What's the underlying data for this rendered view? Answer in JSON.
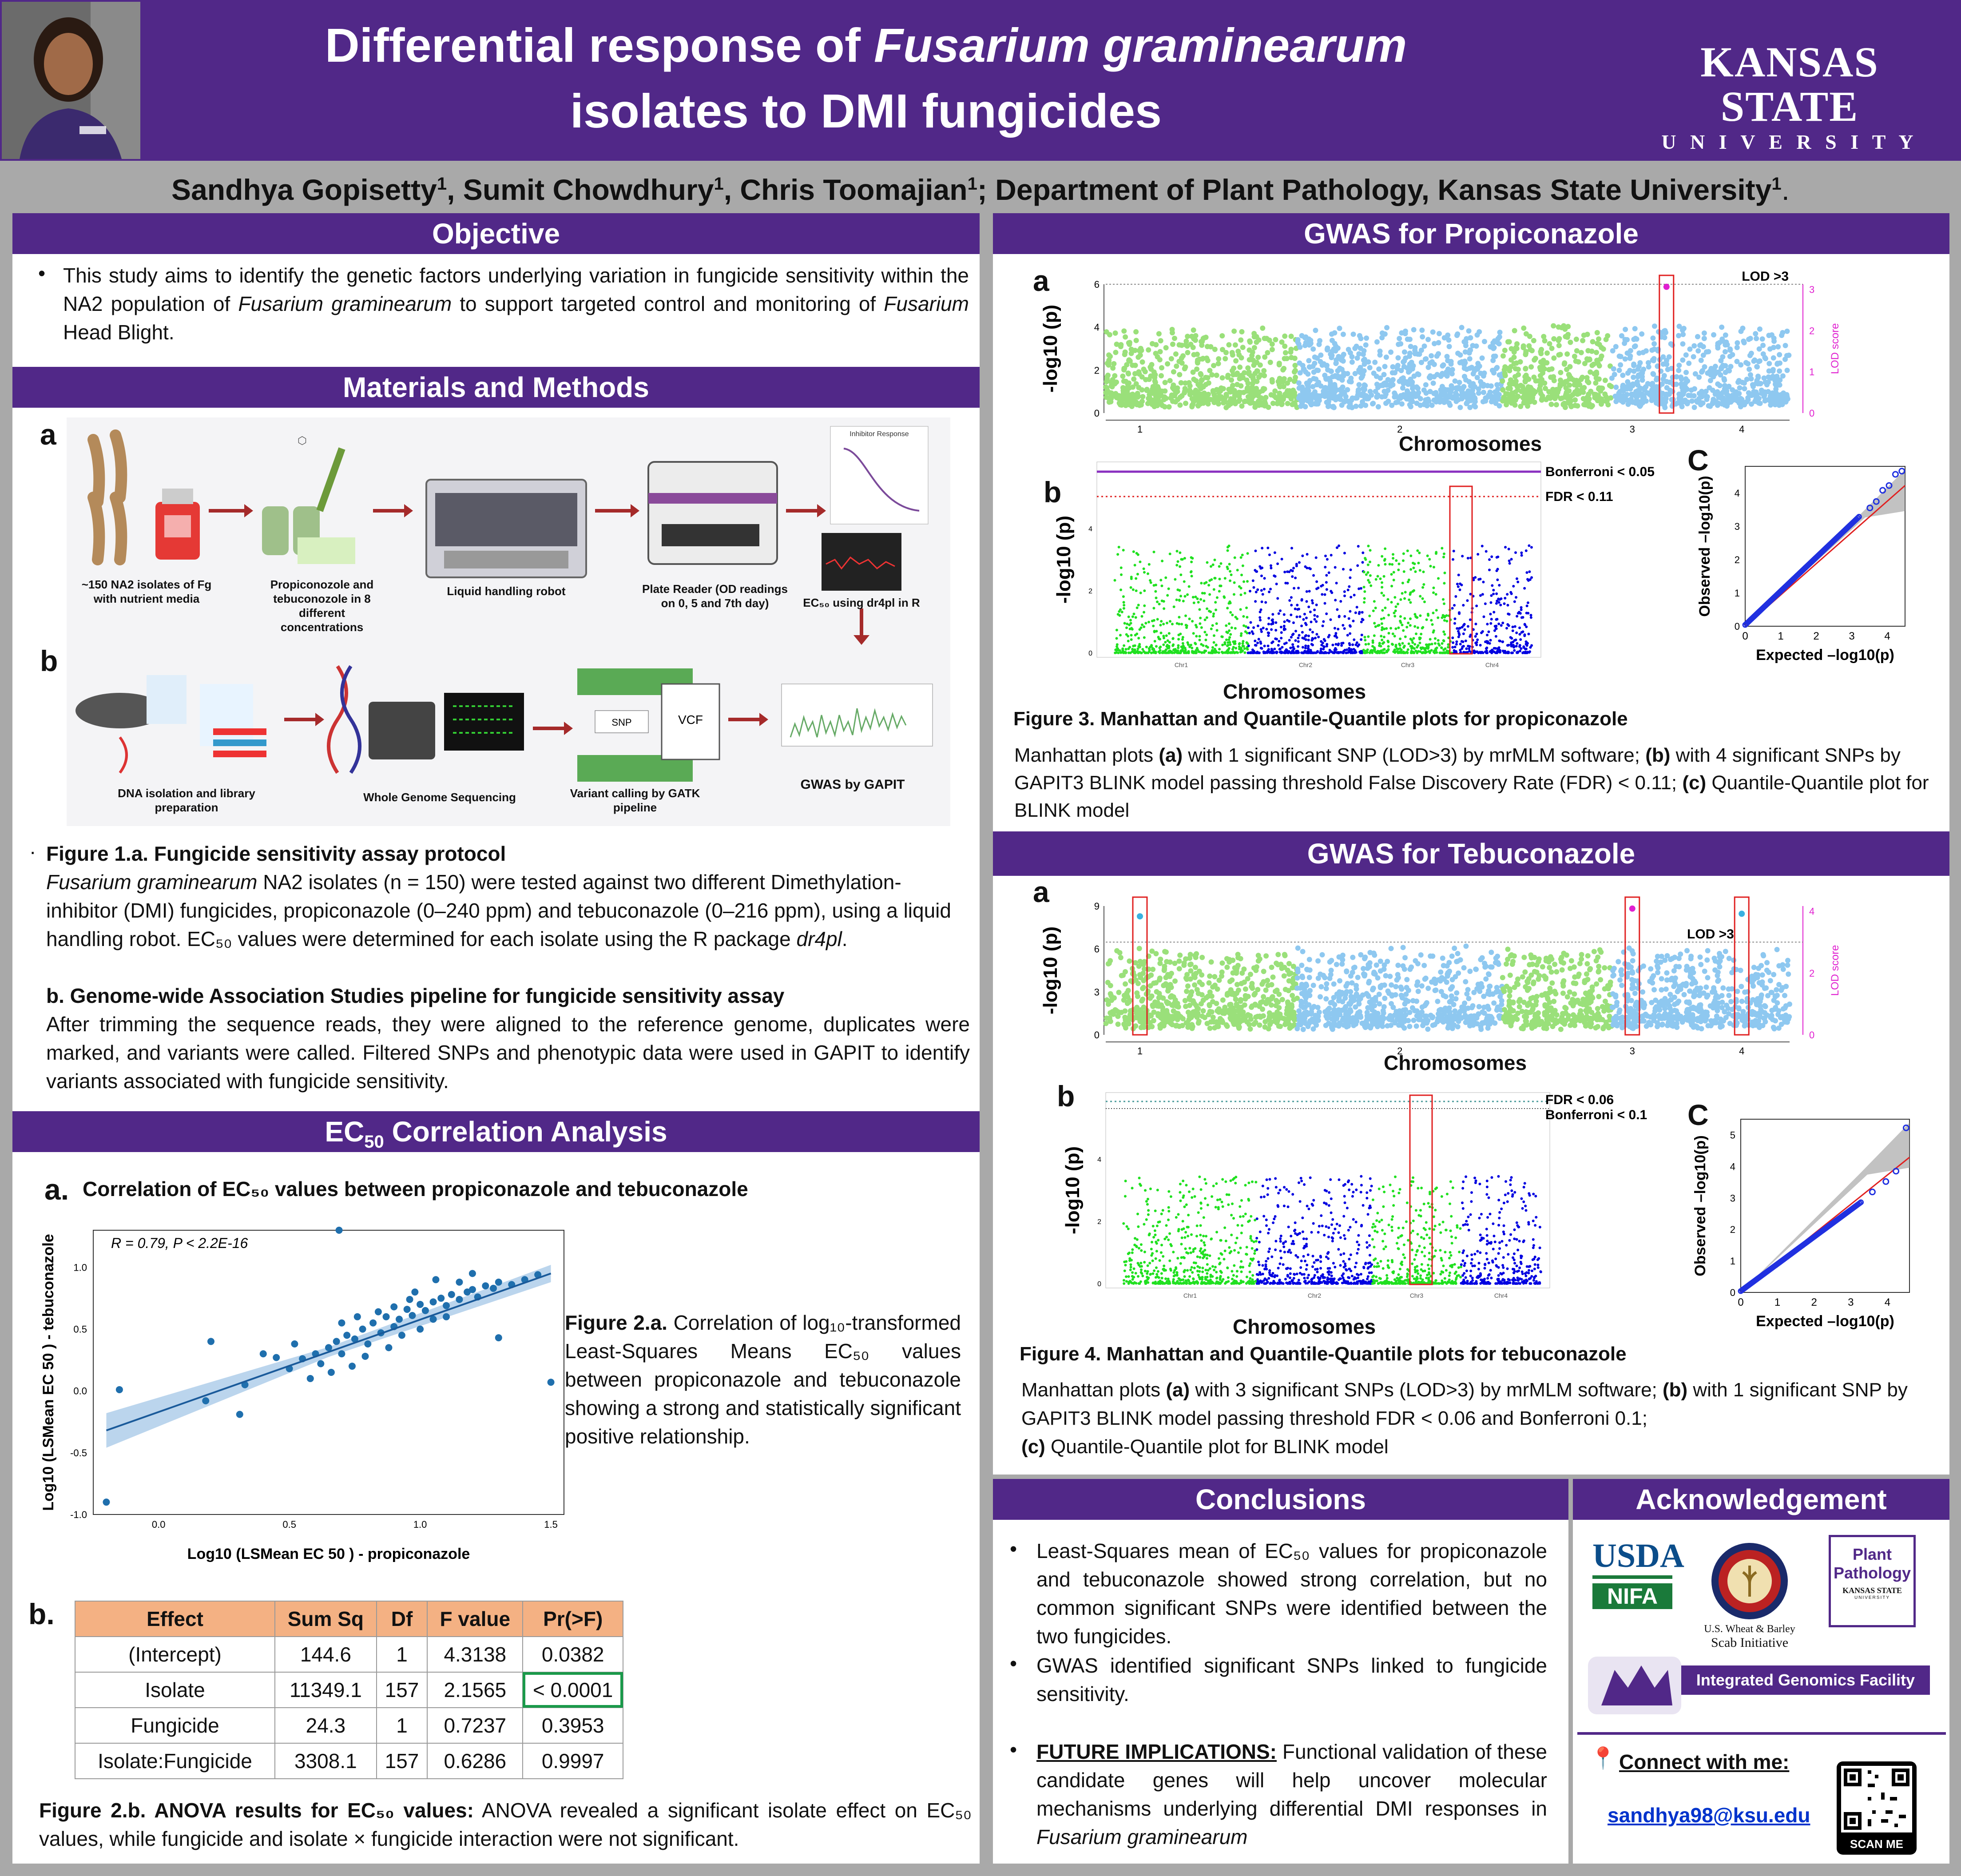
{
  "header": {
    "title_part1": "Differential response of ",
    "title_italic": "Fusarium graminearum",
    "title_line2": "isolates to DMI fungicides",
    "logo_line1": "KANSAS STATE",
    "logo_line2": "U N I V E R S I T Y",
    "colors": {
      "purple": "#512888",
      "white": "#ffffff"
    }
  },
  "authors": {
    "a1": "Sandhya Gopisetty",
    "a2": "Sumit Chowdhury",
    "a3": "Chris Toomajian",
    "dept": "Department of Plant Pathology, Kansas State University",
    "sup": "1",
    "sep": ", ",
    "semi": "; ",
    "end": "."
  },
  "objective": {
    "heading": "Objective",
    "t1": "This study aims to identify the genetic factors underlying variation in fungicide sensitivity within the NA2 population of ",
    "i1": "Fusarium graminearum",
    "t2": " to support targeted control and monitoring of ",
    "i2": "Fusarium",
    "t3": " Head Blight."
  },
  "methods": {
    "heading": "Materials and Methods",
    "label_a": "a",
    "label_b": "b",
    "steps_a": [
      "~150 NA2 isolates of Fg with nutrient media",
      "Propiconozole and tebuconozole in 8 different concentrations",
      "Liquid handling robot",
      "Plate Reader (OD readings on 0, 5 and 7th day)",
      "EC₅₀ using dr4pl in R"
    ],
    "inhibitor_title": "Inhibitor Response",
    "steps_b": [
      "DNA isolation and library preparation",
      "Whole Genome Sequencing",
      "Variant calling by GATK pipeline",
      "GWAS by GAPIT"
    ],
    "snp": "SNP",
    "vcf": "VCF",
    "fig1a_title": "Figure 1.a",
    "fig1a_title2": ". Fungicide sensitivity assay protocol",
    "fig1a_i": "Fusarium graminearum",
    "fig1a_text": " NA2 isolates (n = 150) were tested against two different Dimethylation-inhibitor (DMI) fungicides, propiconazole (0–240 ppm) and tebuconazole (0–216 ppm), using a liquid handling robot. EC₅₀ values were determined for each isolate using the R package ",
    "fig1a_pkg": "dr4pl",
    "fig1a_end": ".",
    "fig1b_title": "b",
    "fig1b_title2": ". Genome-wide Association Studies pipeline for fungicide sensitivity assay",
    "fig1b_text": "After trimming the sequence reads, they were aligned to the reference genome, duplicates were marked, and variants were called. Filtered SNPs and phenotypic data were used in GAPIT to identify variants associated with fungicide sensitivity.",
    "dot": "·"
  },
  "ec50": {
    "heading_pre": "EC",
    "heading_sub": "50",
    "heading_post": " Correlation Analysis",
    "a_label": "a.",
    "a_title": "Correlation of EC₅₀ values between propiconazole and tebuconazole",
    "fig2a_b": "Figure 2.a.",
    "fig2a_text": " Correlation of log₁₀-transformed Least-Squares Means EC₅₀ values between propiconazole and tebuconazole showing a strong and statistically significant positive relationship.",
    "b_label": "b.",
    "table": {
      "headers": [
        "Effect",
        "Sum Sq",
        "Df",
        "F value",
        "Pr(>F)"
      ],
      "rows": [
        [
          "(Intercept)",
          "144.6",
          "1",
          "4.3138",
          "0.0382"
        ],
        [
          "Isolate",
          "11349.1",
          "157",
          "2.1565",
          "< 0.0001"
        ],
        [
          "Fungicide",
          "24.3",
          "1",
          "0.7237",
          "0.3953"
        ],
        [
          "Isolate:Fungicide",
          "3308.1",
          "157",
          "0.6286",
          "0.9997"
        ]
      ]
    },
    "fig2b_b": "Figure 2.b. ANOVA results for EC₅₀ values:",
    "fig2b_text": "  ANOVA revealed a significant isolate effect on EC₅₀ values, while fungicide and isolate × fungicide interaction were not significant."
  },
  "chart_data": [
    {
      "type": "scatter",
      "title": "Correlation of EC50 values between propiconazole and tebuconazole",
      "annotation": "R = 0.79, P < 2.2E-16",
      "xlabel": "Log10 (LSMean EC 50 ) - propiconazole",
      "ylabel": "Log10 (LSMean EC 50 ) - tebuconazole",
      "xlim": [
        -0.25,
        1.55
      ],
      "ylim": [
        -1.0,
        1.3
      ],
      "xticks": [
        "0.0",
        "0.5",
        "1.0",
        "1.5"
      ],
      "yticks": [
        "-1.0",
        "-0.5",
        "0.0",
        "0.5",
        "1.0"
      ],
      "fit": {
        "x": [
          -0.2,
          1.5
        ],
        "y": [
          -0.32,
          0.95
        ]
      },
      "points": [
        [
          -0.2,
          -0.9
        ],
        [
          -0.15,
          0.01
        ],
        [
          0.2,
          0.4
        ],
        [
          0.18,
          -0.08
        ],
        [
          0.31,
          -0.19
        ],
        [
          0.33,
          0.05
        ],
        [
          0.55,
          0.26
        ],
        [
          0.69,
          1.3
        ],
        [
          1.3,
          0.43
        ],
        [
          1.5,
          0.07
        ],
        [
          0.6,
          0.3
        ],
        [
          0.62,
          0.22
        ],
        [
          0.65,
          0.35
        ],
        [
          0.68,
          0.4
        ],
        [
          0.7,
          0.3
        ],
        [
          0.72,
          0.45
        ],
        [
          0.75,
          0.42
        ],
        [
          0.78,
          0.5
        ],
        [
          0.8,
          0.38
        ],
        [
          0.82,
          0.55
        ],
        [
          0.85,
          0.47
        ],
        [
          0.87,
          0.6
        ],
        [
          0.9,
          0.52
        ],
        [
          0.92,
          0.58
        ],
        [
          0.95,
          0.66
        ],
        [
          0.97,
          0.61
        ],
        [
          1.0,
          0.7
        ],
        [
          1.02,
          0.65
        ],
        [
          1.05,
          0.72
        ],
        [
          1.08,
          0.75
        ],
        [
          1.1,
          0.69
        ],
        [
          1.12,
          0.78
        ],
        [
          1.15,
          0.74
        ],
        [
          1.18,
          0.8
        ],
        [
          1.2,
          0.82
        ],
        [
          1.22,
          0.76
        ],
        [
          1.25,
          0.85
        ],
        [
          1.28,
          0.83
        ],
        [
          1.3,
          0.88
        ],
        [
          1.35,
          0.86
        ],
        [
          1.4,
          0.9
        ],
        [
          1.45,
          0.94
        ],
        [
          0.5,
          0.18
        ],
        [
          0.45,
          0.27
        ],
        [
          0.58,
          0.1
        ],
        [
          0.74,
          0.2
        ],
        [
          0.88,
          0.35
        ],
        [
          0.93,
          0.45
        ],
        [
          1.0,
          0.5
        ],
        [
          1.06,
          0.9
        ],
        [
          0.98,
          0.8
        ],
        [
          1.1,
          0.6
        ],
        [
          0.84,
          0.64
        ],
        [
          0.7,
          0.55
        ],
        [
          0.4,
          0.3
        ],
        [
          0.52,
          0.38
        ],
        [
          0.66,
          0.15
        ],
        [
          0.79,
          0.28
        ],
        [
          0.9,
          0.68
        ],
        [
          1.15,
          0.88
        ],
        [
          1.2,
          0.95
        ],
        [
          1.05,
          0.58
        ],
        [
          0.96,
          0.74
        ],
        [
          0.76,
          0.6
        ]
      ]
    },
    {
      "type": "scatter",
      "title": "Manhattan plot propiconazole (mrMLM)",
      "xlabel": "Chromosomes",
      "ylabel": "-log10 (p)",
      "threshold_label": "LOD >3",
      "right_label": "LOD score",
      "chromosomes": [
        "1",
        "2",
        "3",
        "4"
      ],
      "yticks": [
        "0",
        "2",
        "4",
        "6"
      ],
      "lodticks": [
        "0",
        "1",
        "2",
        "3"
      ]
    },
    {
      "type": "scatter",
      "title": "Manhattan plot propiconazole (BLINK)",
      "xlabel": "Chromosomes",
      "ylabel": "-log10 (p)",
      "lines": [
        "Bonferroni < 0.05",
        "FDR < 0.11"
      ],
      "chromosomes": [
        "Chr1",
        "Chr2",
        "Chr3",
        "Chr4"
      ],
      "yticks": [
        "0",
        "2",
        "4"
      ]
    },
    {
      "type": "scatter",
      "title": "QQ plot propiconazole",
      "xlabel": "Expected –log10(p)",
      "ylabel": "Observed –log10(p)",
      "xticks": [
        "0",
        "1",
        "2",
        "3",
        "4"
      ],
      "yticks": [
        "0",
        "1",
        "2",
        "3",
        "4"
      ]
    },
    {
      "type": "scatter",
      "title": "Manhattan plot tebuconazole (mrMLM)",
      "xlabel": "Chromosomes",
      "ylabel": "-log10 (p)",
      "threshold_label": "LOD >3",
      "right_label": "LOD score",
      "chromosomes": [
        "1",
        "2",
        "3",
        "4"
      ],
      "yticks": [
        "0",
        "3",
        "6",
        "9"
      ],
      "lodticks": [
        "0",
        "2",
        "4"
      ]
    },
    {
      "type": "scatter",
      "title": "Manhattan plot tebuconazole (BLINK)",
      "xlabel": "Chromosomes",
      "ylabel": "-log10 (p)",
      "lines": [
        "FDR < 0.06",
        "Bonferroni < 0.1"
      ],
      "chromosomes": [
        "Chr1",
        "Chr2",
        "Chr3",
        "Chr4"
      ],
      "yticks": [
        "0",
        "2",
        "4"
      ]
    },
    {
      "type": "scatter",
      "title": "QQ plot tebuconazole",
      "xlabel": "Expected –log10(p)",
      "ylabel": "Observed –log10(p)",
      "xticks": [
        "0",
        "1",
        "2",
        "3",
        "4"
      ],
      "yticks": [
        "0",
        "1",
        "2",
        "3",
        "4",
        "5"
      ]
    }
  ],
  "gwas_prop": {
    "heading": "GWAS for Propiconazole",
    "label_a": "a",
    "label_b": "b",
    "label_c": "C",
    "xlabel": "Chromosomes",
    "fig3_title": "Figure 3. Manhattan and Quantile-Quantile plots for propiconazole",
    "t1": "Manhattan plots ",
    "b1": "(a)",
    "t2": " with 1 significant SNP (LOD>3) by mrMLM software; ",
    "b2": "(b)",
    "t3": " with 4 significant SNPs by GAPIT3 BLINK model passing threshold False Discovery Rate (FDR) < 0.11; ",
    "b3": "(c)",
    "t4": " Quantile-Quantile plot for BLINK model"
  },
  "gwas_teb": {
    "heading": "GWAS for Tebuconazole",
    "label_a": "a",
    "label_b": "b",
    "label_c": "C",
    "fig4_title": "Figure 4. Manhattan and Quantile-Quantile plots for tebuconazole",
    "t1": "Manhattan plots ",
    "b1": "(a)",
    "t2": " with 3 significant SNPs (LOD>3) by mrMLM software; ",
    "b2": "(b)",
    "t3": " with 1 significant SNP by GAPIT3 BLINK model passing threshold FDR < 0.06 and  Bonferroni 0.1;",
    "b3": "(c)",
    "t4": " Quantile-Quantile plot for BLINK model"
  },
  "conclusions": {
    "heading": "Conclusions",
    "c1a": "Least-Squares mean of EC₅₀ values for propiconazole and tebuconazole showed strong correlation, but no common significant SNPs were identified between the two fungicides.",
    "c2": "GWAS identified significant SNPs linked to fungicide sensitivity.",
    "c3_u": "FUTURE IMPLICATIONS:",
    "c3": " Functional validation of these candidate genes will help uncover molecular mechanisms underlying differential DMI responses in ",
    "c3_i": "Fusarium graminearum"
  },
  "ack": {
    "heading": "Acknowledgement",
    "usda": "USDA",
    "nifa": "NIFA",
    "scab1": "U.S. Wheat & Barley",
    "scab2": "Scab Initiative",
    "pp1": "Plant",
    "pp2": "Pathology",
    "pp3": "KANSAS STATE",
    "pp4": "UNIVERSITY",
    "igf": "Integrated Genomics Facility",
    "connect": "Connect with me:",
    "email": "sandhya98@ksu.edu",
    "scan": "SCAN ME"
  }
}
